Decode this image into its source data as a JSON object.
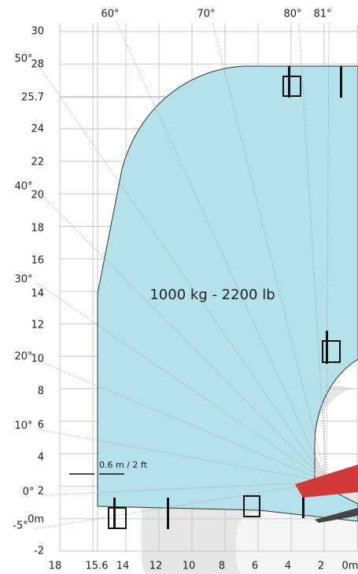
{
  "y_ticks": [
    "30",
    "28",
    "25.7",
    "24",
    "22",
    "20",
    "18",
    "16",
    "14",
    "12",
    "10",
    "8",
    "6",
    "4",
    "2",
    "0m",
    "-2"
  ],
  "x_ticks": [
    "18",
    "15.6",
    "14",
    "12",
    "10",
    "8",
    "6",
    "4",
    "2",
    "0m"
  ],
  "angle_labels_top": [
    "60°",
    "70°",
    "80°",
    "81°"
  ],
  "angle_labels_left": [
    "50°",
    "40°",
    "30°",
    "20°",
    "10°",
    "0°",
    "-5°"
  ],
  "capacity": "1000 kg - 2200 lb",
  "offset_note": "0.6 m / 2 ft"
}
